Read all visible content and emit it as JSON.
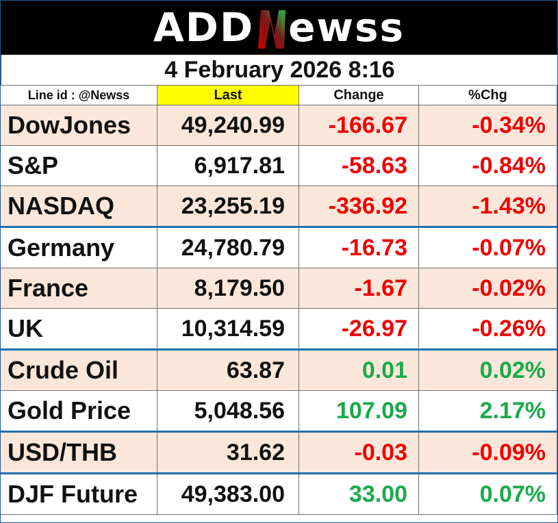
{
  "brand": {
    "logo_part1": "ADD",
    "logo_part2": "ewss"
  },
  "datetime": "4 February 2026  8:16",
  "table": {
    "headers": {
      "line_id": "Line id : @Newss",
      "last": "Last",
      "change": "Change",
      "pct": "%Chg"
    },
    "rows": [
      {
        "name": "DowJones",
        "last": "49,240.99",
        "change": "-166.67",
        "pct": "-0.34%",
        "direction": "down"
      },
      {
        "name": "S&P",
        "last": "6,917.81",
        "change": "-58.63",
        "pct": "-0.84%",
        "direction": "down"
      },
      {
        "name": "NASDAQ",
        "last": "23,255.19",
        "change": "-336.92",
        "pct": "-1.43%",
        "direction": "down"
      },
      {
        "name": "Germany",
        "last": "24,780.79",
        "change": "-16.73",
        "pct": "-0.07%",
        "direction": "down"
      },
      {
        "name": "France",
        "last": "8,179.50",
        "change": "-1.67",
        "pct": "-0.02%",
        "direction": "down"
      },
      {
        "name": "UK",
        "last": "10,314.59",
        "change": "-26.97",
        "pct": "-0.26%",
        "direction": "down"
      },
      {
        "name": "Crude Oil",
        "last": "63.87",
        "change": "0.01",
        "pct": "0.02%",
        "direction": "up"
      },
      {
        "name": "Gold Price",
        "last": "5,048.56",
        "change": "107.09",
        "pct": "2.17%",
        "direction": "up"
      },
      {
        "name": "USD/THB",
        "last": "31.62",
        "change": "-0.03",
        "pct": "-0.09%",
        "direction": "down"
      },
      {
        "name": "DJF Future",
        "last": "49,383.00",
        "change": "33.00",
        "pct": "0.07%",
        "direction": "up"
      }
    ]
  },
  "colors": {
    "up": "#1aaa4a",
    "down": "#ee0000",
    "header_highlight": "#ffff00",
    "row_shade": "#fbe7da",
    "separator": "#1f6fb0"
  }
}
